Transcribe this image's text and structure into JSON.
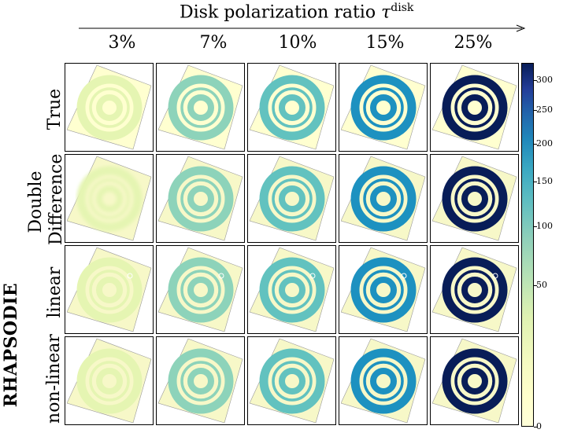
{
  "title_text": "Disk polarization ratio",
  "title_symbol": "τ",
  "title_sup": "disk",
  "columns": [
    "3%",
    "7%",
    "10%",
    "15%",
    "25%"
  ],
  "rows": [
    {
      "label": "True",
      "label2": ""
    },
    {
      "label": "Double",
      "label2": "Difference"
    },
    {
      "label": "linear",
      "label2": ""
    },
    {
      "label": "non-linear",
      "label2": ""
    }
  ],
  "group_label": "RHAPSODIE",
  "colorbar": {
    "ticks": [
      "300",
      "250",
      "200",
      "150",
      "100",
      "50",
      "0"
    ],
    "colors": [
      "#ffffd9",
      "#081d58"
    ]
  }
}
